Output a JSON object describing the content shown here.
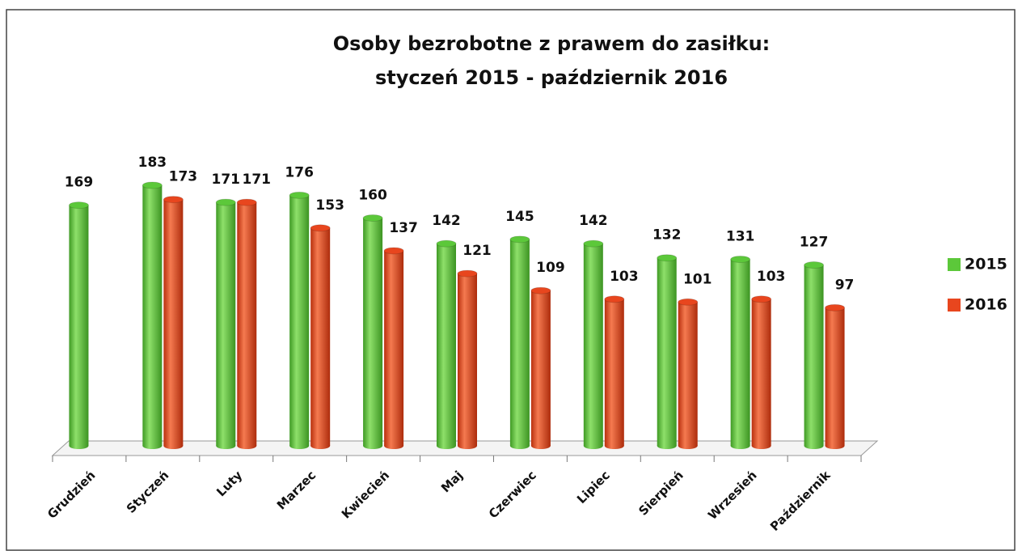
{
  "chart_data": {
    "type": "bar",
    "title": [
      "Osoby bezrobotne z prawem do zasiłku:",
      "styczeń 2015 - październik 2016"
    ],
    "categories": [
      "Grudzień",
      "Styczeń",
      "Luty",
      "Marzec",
      "Kwiecień",
      "Maj",
      "Czerwiec",
      "Lipiec",
      "Sierpień",
      "Wrzesień",
      "Październik"
    ],
    "series": [
      {
        "name": "2015",
        "color": "#5cc83a",
        "values": [
          169,
          183,
          171,
          176,
          160,
          142,
          145,
          142,
          132,
          131,
          127
        ]
      },
      {
        "name": "2016",
        "color": "#e8461e",
        "values": [
          null,
          173,
          171,
          153,
          137,
          121,
          109,
          103,
          101,
          103,
          97
        ]
      }
    ],
    "legend": "right"
  }
}
